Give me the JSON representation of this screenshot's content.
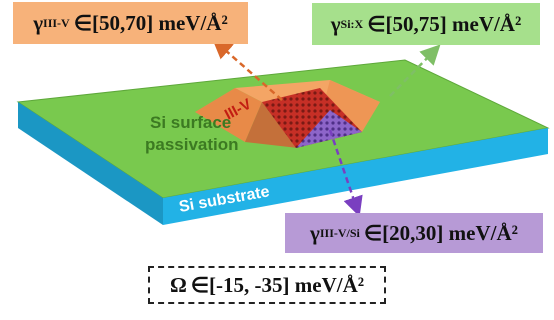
{
  "labels": {
    "iii_v_energy": {
      "symbol": "γ",
      "sub": "III-V",
      "text": "∈[50,70] meV/Å²"
    },
    "si_x_energy": {
      "symbol": "γ",
      "sub": "Si:X",
      "text": "∈[50,75] meV/Å²"
    },
    "iii_v_si_energy": {
      "symbol": "γ",
      "sub": "III-V/Si",
      "text": "∈[20,30] meV/Å²"
    },
    "omega": {
      "symbol": "Ω",
      "text": "∈[-15, -35] meV/Å²"
    }
  },
  "scene": {
    "iii_v_label": "III-V",
    "surface_label_1": "Si surface",
    "surface_label_2": "passivation",
    "substrate_label": "Si substrate"
  },
  "colors": {
    "substrate_top": "#79c94e",
    "substrate_side": "#1eaee0",
    "island": "#f29a58",
    "facet_red": "#d0342a",
    "interface_purple": "#8a5fc4",
    "arrow_orange": "#d9682a",
    "arrow_green": "#7fbf66",
    "arrow_purple": "#7a3fc0",
    "text_green": "#3c7a22"
  }
}
